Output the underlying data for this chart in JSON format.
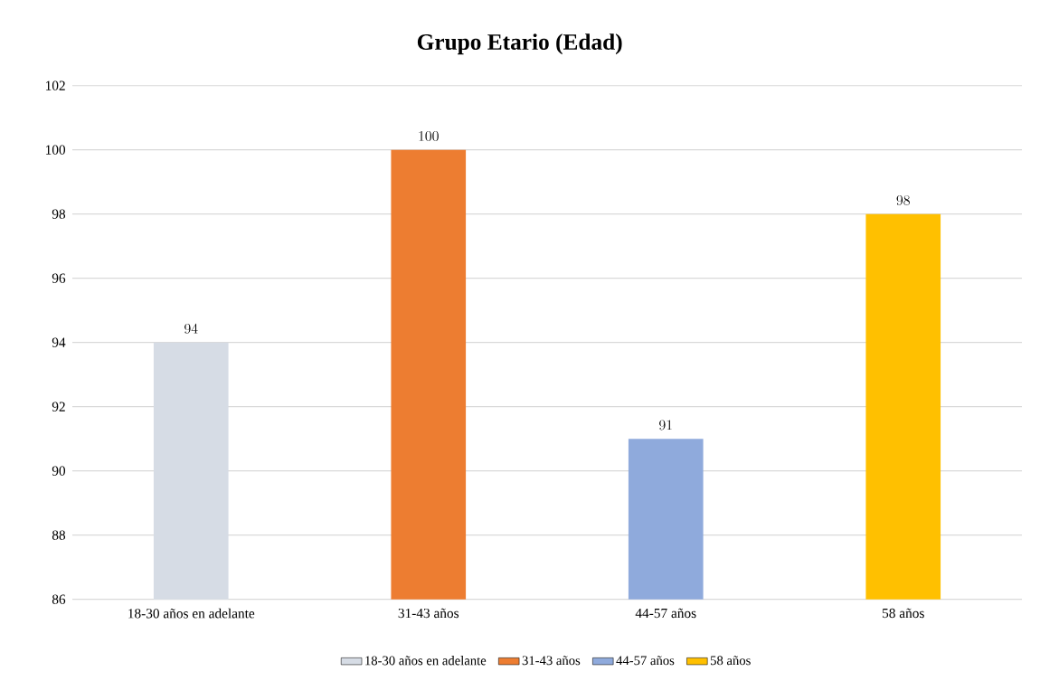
{
  "chart_data": {
    "type": "bar",
    "title": "Grupo Etario (Edad)",
    "categories": [
      "18-30 años en adelante",
      "31-43 años",
      "44-57 años",
      "58 años"
    ],
    "series": [
      {
        "name": "18-30 años en adelante",
        "color": "#d6dce5",
        "values": [
          94,
          null,
          null,
          null
        ]
      },
      {
        "name": "31-43 años",
        "color": "#ed7d31",
        "values": [
          null,
          100,
          null,
          null
        ]
      },
      {
        "name": "44-57 años",
        "color": "#8faadc",
        "values": [
          null,
          null,
          91,
          null
        ]
      },
      {
        "name": "58 años",
        "color": "#ffc000",
        "values": [
          null,
          null,
          null,
          98
        ]
      }
    ],
    "ylim": [
      86,
      102
    ],
    "yticks": [
      86,
      88,
      90,
      92,
      94,
      96,
      98,
      100,
      102
    ],
    "grid": "y",
    "legend": "bottom",
    "data_labels": true
  }
}
